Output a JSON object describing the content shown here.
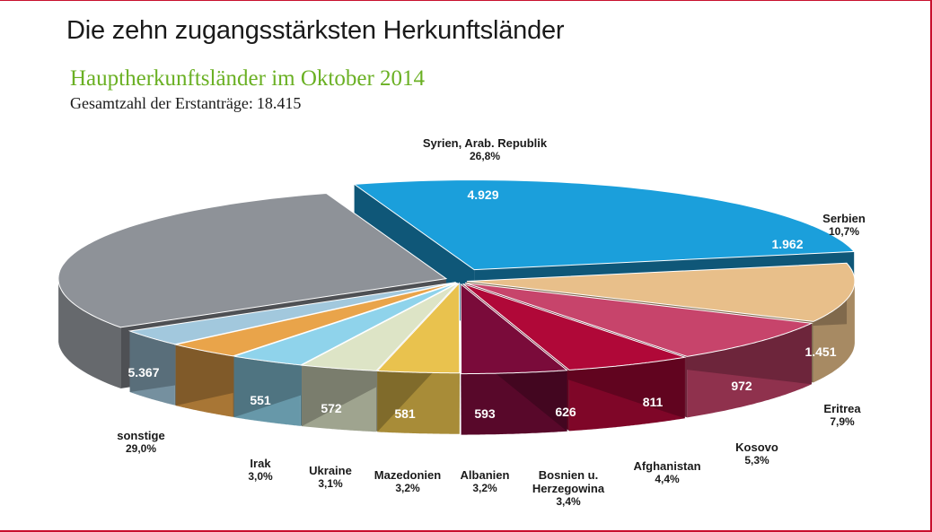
{
  "title": "Die zehn zugangsstärksten Herkunftsländer",
  "subtitle": "Hauptherkunftsländer im Oktober 2014",
  "total_label": "Gesamtzahl der Erstanträge:",
  "total_value": "18.415",
  "colors": {
    "frame": "#c8102e",
    "subtitle": "#6ab023"
  },
  "chart_data": {
    "type": "pie",
    "title": "Hauptherkunftsländer im Oktober 2014",
    "slices": [
      {
        "label": "Syrien, Arab. Republik",
        "value": 4929,
        "value_text": "4.929",
        "percent": "26,8%",
        "color": "#1b9fdb"
      },
      {
        "label": "Serbien",
        "value": 1962,
        "value_text": "1.962",
        "percent": "10,7%",
        "color": "#e8bf8a"
      },
      {
        "label": "Eritrea",
        "value": 1451,
        "value_text": "1.451",
        "percent": "7,9%",
        "color": "#c7446b"
      },
      {
        "label": "Kosovo",
        "value": 972,
        "value_text": "972",
        "percent": "5,3%",
        "color": "#b00838"
      },
      {
        "label": "Afghanistan",
        "value": 811,
        "value_text": "811",
        "percent": "4,4%",
        "color": "#7a0b3a"
      },
      {
        "label": "Bosnien u. Herzegowina",
        "value": 626,
        "value_text": "626",
        "percent": "3,4%",
        "color": "#e9c24e"
      },
      {
        "label": "Albanien",
        "value": 593,
        "value_text": "593",
        "percent": "3,2%",
        "color": "#dde4c6"
      },
      {
        "label": "Mazedonien",
        "value": 581,
        "value_text": "581",
        "percent": "3,2%",
        "color": "#8fd3eb"
      },
      {
        "label": "Ukraine",
        "value": 572,
        "value_text": "572",
        "percent": "3,1%",
        "color": "#e9a44a"
      },
      {
        "label": "Irak",
        "value": 551,
        "value_text": "551",
        "percent": "3,0%",
        "color": "#a2c8dd"
      },
      {
        "label": "sonstige",
        "value": 5367,
        "value_text": "5.367",
        "percent": "29,0%",
        "color": "#8e9298"
      }
    ]
  }
}
